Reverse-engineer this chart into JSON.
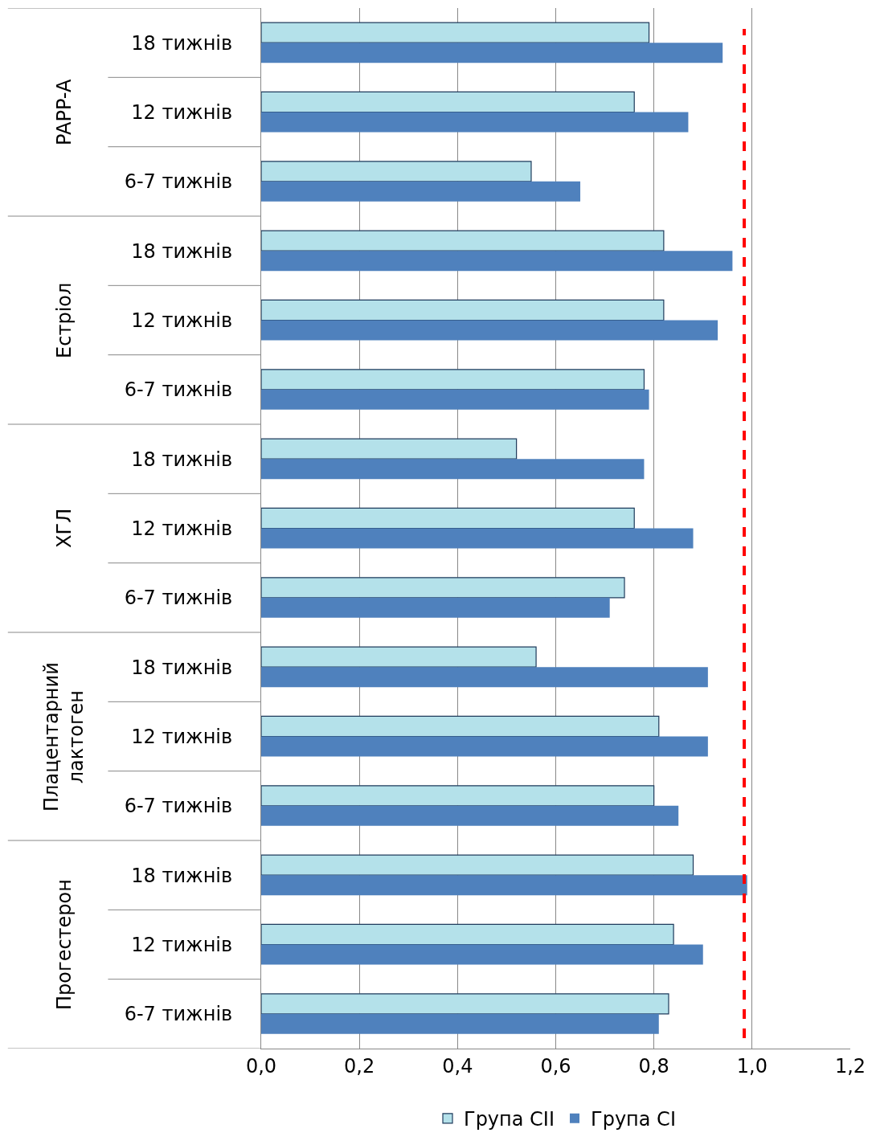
{
  "chart_data": {
    "type": "bar",
    "orientation": "horizontal",
    "categories": [
      "18 тижнів",
      "12 тижнів",
      "6-7 тижнів",
      "18 тижнів",
      "12 тижнів",
      "6-7 тижнів",
      "18 тижнів",
      "12 тижнів",
      "6-7 тижнів",
      "18 тижнів",
      "12 тижнів",
      "6-7 тижнів",
      "18 тижнів",
      "12 тижнів",
      "6-7 тижнів"
    ],
    "series": [
      {
        "name": "Група CII",
        "color": "#b4e1ea",
        "values": [
          0.79,
          0.76,
          0.55,
          0.82,
          0.82,
          0.78,
          0.52,
          0.76,
          0.74,
          0.56,
          0.81,
          0.8,
          0.88,
          0.84,
          0.83
        ]
      },
      {
        "name": "Група CI",
        "color": "#4f81bd",
        "values": [
          0.94,
          0.87,
          0.65,
          0.96,
          0.93,
          0.79,
          0.78,
          0.88,
          0.71,
          0.91,
          0.91,
          0.85,
          0.99,
          0.9,
          0.81
        ]
      }
    ],
    "annotations": [
      "PAPP-A",
      "Естріол",
      "ХГЛ",
      "Плацентарний\nлактоген",
      "Прогестерон"
    ],
    "xlim": [
      0,
      1.2
    ],
    "xticks": [
      {
        "value": 0,
        "label": "0,0"
      },
      {
        "value": 0.2,
        "label": "0,2"
      },
      {
        "value": 0.4,
        "label": "0,4"
      },
      {
        "value": 0.6,
        "label": "0,6"
      },
      {
        "value": 0.8,
        "label": "0,8"
      },
      {
        "value": 1,
        "label": "1,0"
      },
      {
        "value": 1.2,
        "label": "1,2"
      }
    ],
    "ref_lines": [
      {
        "axis": "x",
        "value": 0.984,
        "color": "#ff0000",
        "line_style": "dashed"
      }
    ],
    "grid": "x",
    "legend": "bottom"
  }
}
